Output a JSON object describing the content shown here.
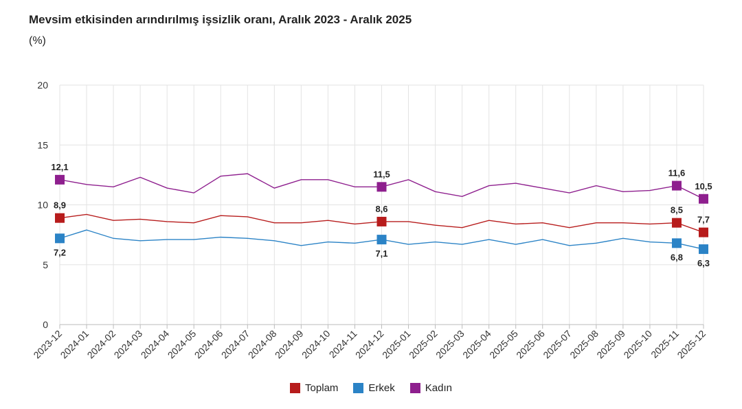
{
  "chart_data": {
    "type": "line",
    "title": "Mevsim etkisinden arındırılmış işsizlik oranı, Aralık 2023 - Aralık 2025",
    "ylabel": "(%)",
    "ylim": [
      0,
      20
    ],
    "yticks": [
      "0",
      "5",
      "10",
      "15",
      "20"
    ],
    "grid": true,
    "legend_placement": "bottom",
    "categories": [
      "2023-12",
      "2024-01",
      "2024-02",
      "2024-03",
      "2024-04",
      "2024-05",
      "2024-06",
      "2024-07",
      "2024-08",
      "2024-09",
      "2024-10",
      "2024-11",
      "2024-12",
      "2025-01",
      "2025-02",
      "2025-03",
      "2025-04",
      "2025-05",
      "2025-06",
      "2025-07",
      "2025-08",
      "2025-09",
      "2025-10",
      "2025-11",
      "2025-12"
    ],
    "labeled_indices": [
      0,
      12,
      23,
      24
    ],
    "series": [
      {
        "name": "Toplam",
        "color": "#b71c1c",
        "values": [
          8.9,
          9.2,
          8.7,
          8.8,
          8.6,
          8.5,
          9.1,
          9.0,
          8.5,
          8.5,
          8.7,
          8.4,
          8.6,
          8.6,
          8.3,
          8.1,
          8.7,
          8.4,
          8.5,
          8.1,
          8.5,
          8.5,
          8.4,
          8.5,
          7.7
        ],
        "labels": [
          "8,9",
          "8,6",
          "8,5",
          "7,7"
        ],
        "label_pos": "above"
      },
      {
        "name": "Erkek",
        "color": "#2b83c6",
        "values": [
          7.2,
          7.9,
          7.2,
          7.0,
          7.1,
          7.1,
          7.3,
          7.2,
          7.0,
          6.6,
          6.9,
          6.8,
          7.1,
          6.7,
          6.9,
          6.7,
          7.1,
          6.7,
          7.1,
          6.6,
          6.8,
          7.2,
          6.9,
          6.8,
          6.3
        ],
        "labels": [
          "7,2",
          "7,1",
          "6,8",
          "6,3"
        ],
        "label_pos": "below"
      },
      {
        "name": "Kadın",
        "color": "#8e1f8e",
        "values": [
          12.1,
          11.7,
          11.5,
          12.3,
          11.4,
          11.0,
          12.4,
          12.6,
          11.4,
          12.1,
          12.1,
          11.5,
          11.5,
          12.1,
          11.1,
          10.7,
          11.6,
          11.8,
          11.4,
          11.0,
          11.6,
          11.1,
          11.2,
          11.6,
          10.5
        ],
        "labels": [
          "12,1",
          "11,5",
          "11,6",
          "10,5"
        ],
        "label_pos": "above"
      }
    ]
  }
}
